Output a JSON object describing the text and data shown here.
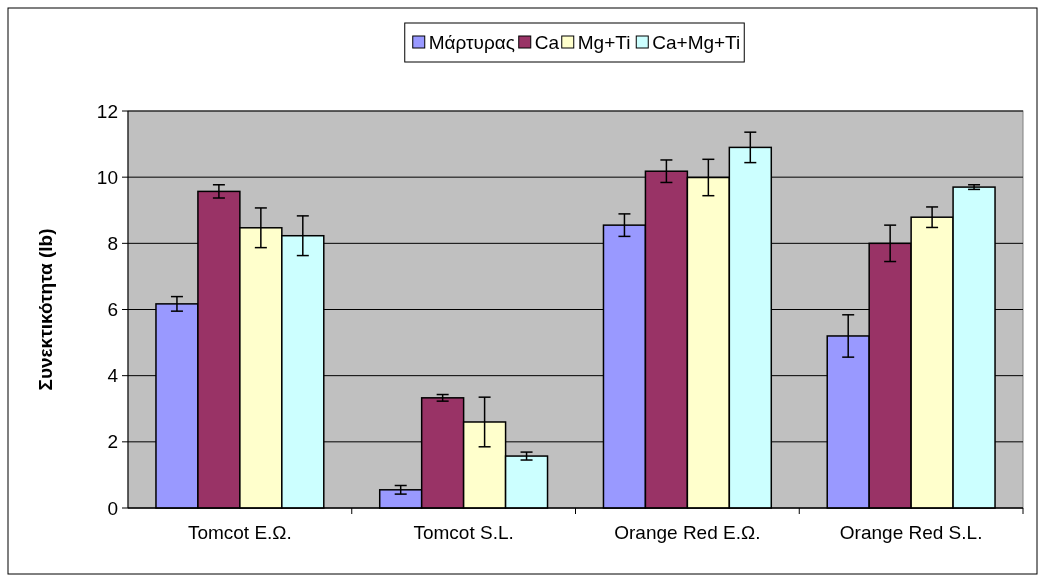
{
  "chart_data": {
    "type": "bar",
    "ylabel": "Συνεκτικότητα (lb)",
    "categories": [
      "Tomcot Ε.Ω.",
      "Tomcot S.L.",
      "Orange Red Ε.Ω.",
      "Orange Red S.L."
    ],
    "series": [
      {
        "name": "Μάρτυρας",
        "color": "#9999ff",
        "values": [
          6.17,
          0.55,
          8.55,
          5.2
        ],
        "errors": [
          0.22,
          0.13,
          0.34,
          0.64
        ]
      },
      {
        "name": "Ca",
        "color": "#993366",
        "values": [
          9.57,
          3.33,
          10.18,
          8.0
        ],
        "errors": [
          0.2,
          0.1,
          0.34,
          0.55
        ]
      },
      {
        "name": "Mg+Ti",
        "color": "#ffffcc",
        "values": [
          8.47,
          2.6,
          9.99,
          8.79
        ],
        "errors": [
          0.6,
          0.75,
          0.55,
          0.31
        ]
      },
      {
        "name": "Ca+Mg+Ti",
        "color": "#ccffff",
        "values": [
          8.23,
          1.57,
          10.9,
          9.7
        ],
        "errors": [
          0.6,
          0.12,
          0.46,
          0.07
        ]
      }
    ],
    "ylim": [
      0,
      12
    ],
    "yticks": [
      0,
      2,
      4,
      6,
      8,
      10,
      12
    ],
    "grid": "y",
    "legend": "top"
  }
}
